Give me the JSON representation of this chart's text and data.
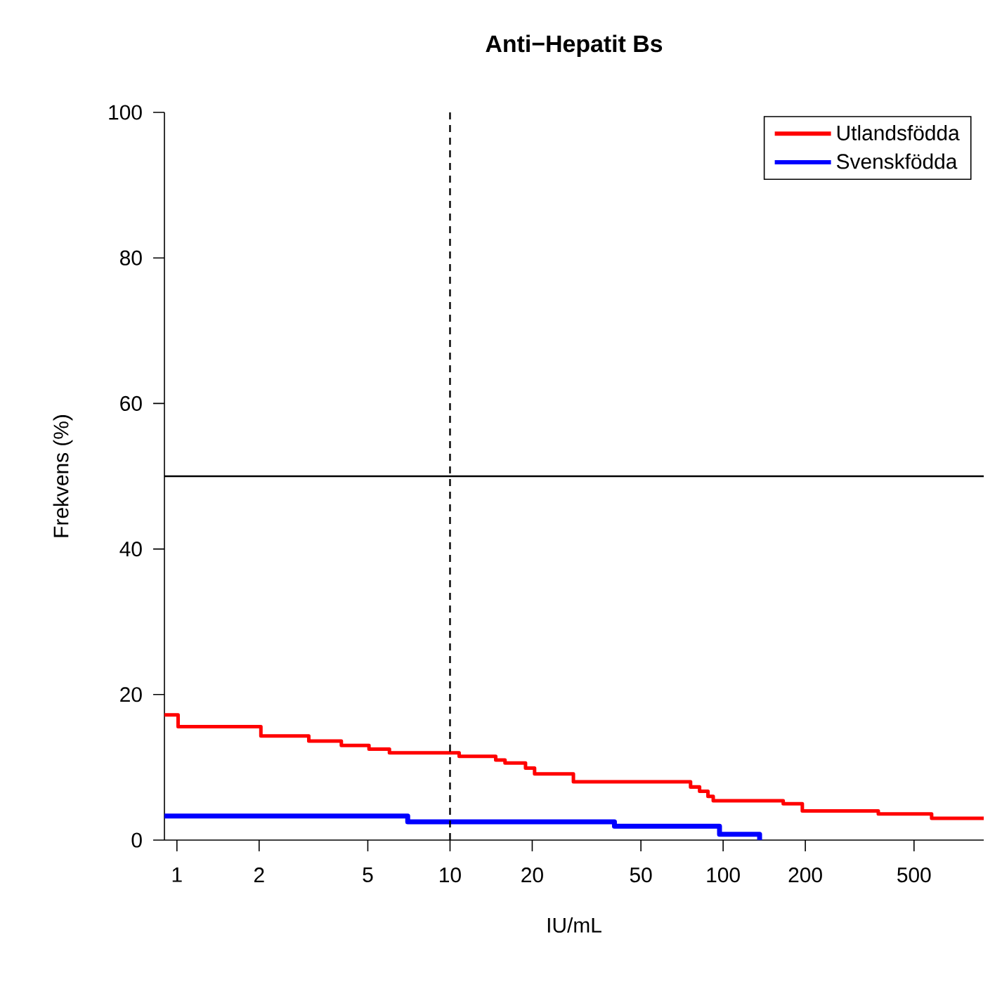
{
  "chart_data": {
    "type": "step",
    "title": "Anti−Hepatit Bs",
    "xlabel": "IU/mL",
    "ylabel": "Frekvens (%)",
    "log": "x",
    "xlim": [
      0.9,
      900
    ],
    "ylim": [
      0,
      100
    ],
    "xticks": [
      1,
      2,
      5,
      10,
      20,
      50,
      100,
      200,
      500
    ],
    "yticks": [
      0,
      20,
      40,
      60,
      80,
      100
    ],
    "grid": false,
    "legend": "top right",
    "ref_lines": [
      {
        "axis": "y",
        "value": 50,
        "color": "#000000",
        "line_style": "solid"
      },
      {
        "axis": "x",
        "value": 10,
        "color": "#000000",
        "line_style": "dashed"
      }
    ],
    "series": [
      {
        "name": "Utlandsfödda",
        "color": "#ff0000",
        "x": [
          0.9,
          1.01,
          2.03,
          3.04,
          4.0,
          5.05,
          6.0,
          10.8,
          14.7,
          15.9,
          18.9,
          20.4,
          28.3,
          76,
          82,
          88,
          92,
          166,
          195,
          370,
          580,
          900
        ],
        "values": [
          17.2,
          15.6,
          14.3,
          13.6,
          13.0,
          12.5,
          12.0,
          11.5,
          11.0,
          10.6,
          9.9,
          9.1,
          8.0,
          7.3,
          6.7,
          6.0,
          5.4,
          5.0,
          4.0,
          3.6,
          3.0,
          3.0
        ]
      },
      {
        "name": "Svenskfödda",
        "color": "#0000ff",
        "x": [
          0.9,
          7.0,
          40,
          97,
          136
        ],
        "values": [
          3.3,
          2.5,
          1.9,
          0.8,
          0
        ]
      }
    ]
  }
}
